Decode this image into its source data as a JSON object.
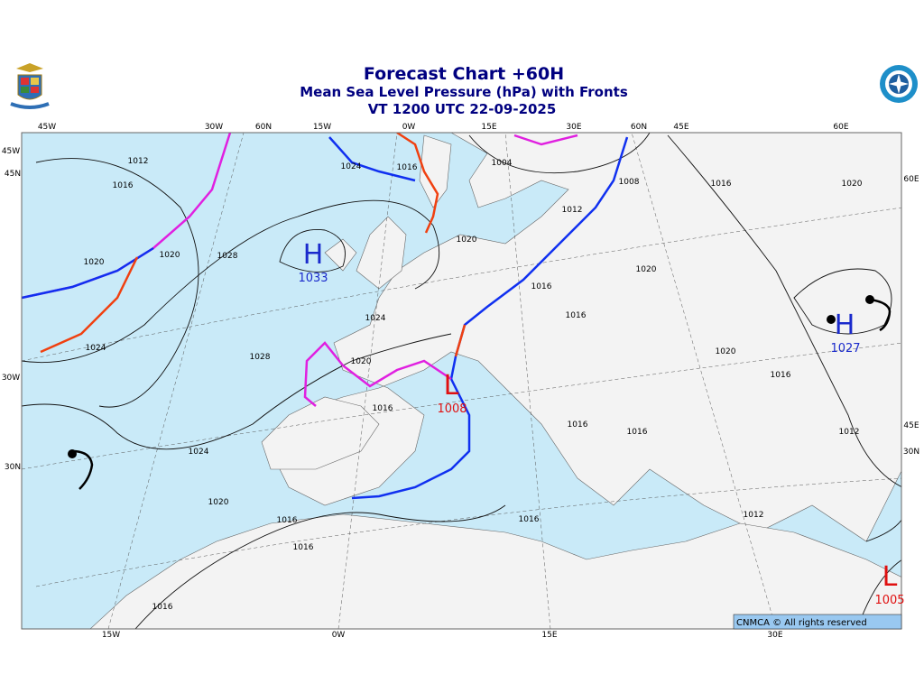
{
  "header": {
    "title": "Forecast Chart +60H",
    "subtitle": "Mean Sea Level Pressure (hPa) with Fronts",
    "valid_time": "VT 1200 UTC 22-09-2025"
  },
  "map": {
    "top_labels": [
      "45W",
      "30W",
      "60N",
      "15W",
      "0W",
      "15E",
      "30E",
      "60N",
      "45E",
      "60E"
    ],
    "left_labels": [
      "45W",
      "45N",
      "30W",
      "30N"
    ],
    "right_labels": [
      "60E",
      "45E",
      "30N"
    ],
    "bottom_labels": [
      "15W",
      "0W",
      "15E",
      "30E"
    ],
    "pressure_centers": [
      {
        "symbol": "H",
        "value": "1033"
      },
      {
        "symbol": "L",
        "value": "1008"
      },
      {
        "symbol": "H",
        "value": "1027"
      },
      {
        "symbol": "L",
        "value": "1005"
      }
    ],
    "isobar_labels": [
      "1012",
      "1016",
      "1020",
      "1020",
      "1028",
      "1024",
      "1028",
      "1024",
      "1020",
      "1016",
      "1016",
      "1016",
      "1024",
      "1020",
      "1016",
      "1024",
      "1016",
      "1004",
      "1008",
      "1016",
      "1020",
      "1012",
      "1020",
      "1016",
      "1020",
      "1016",
      "1020",
      "1016",
      "1012",
      "1016",
      "1016",
      "1016",
      "1012"
    ],
    "credit": "CNMCA © All rights reserved"
  }
}
